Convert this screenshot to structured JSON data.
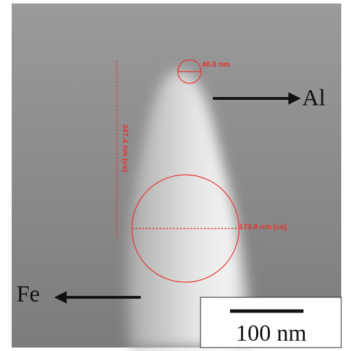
{
  "image": {
    "tip_width": "40.0 nm",
    "height": "347.4 nm (cs)",
    "base_width": "173.8 nm (cs)",
    "label_right": "Al",
    "label_left": "Fe",
    "scale_bar": "100 nm"
  }
}
